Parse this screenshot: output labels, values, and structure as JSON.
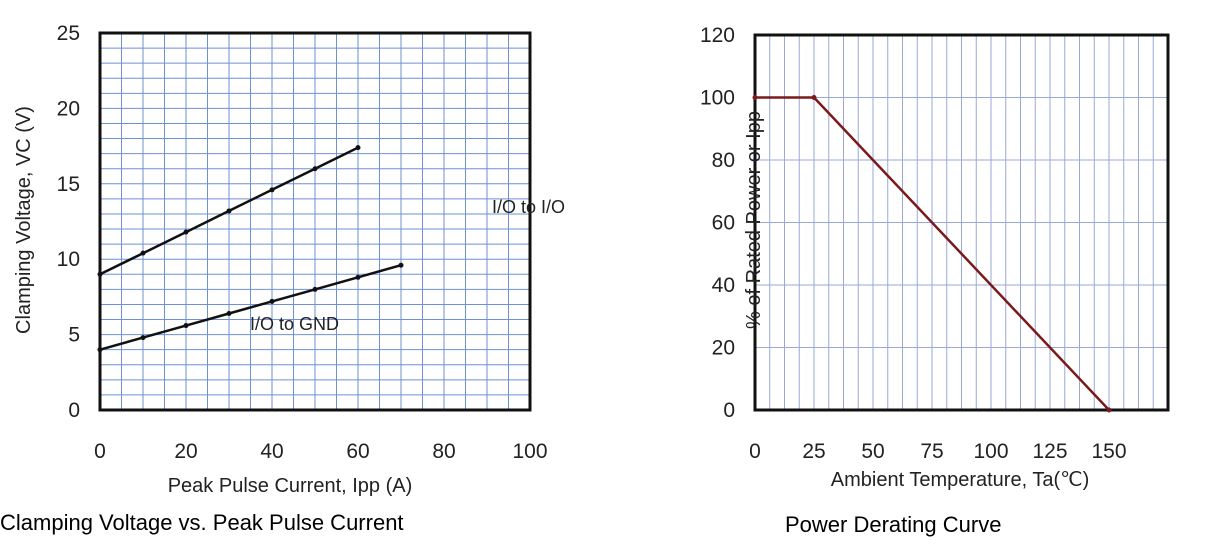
{
  "figure": {
    "caption_left": "Clamping Voltage vs. Peak Pulse Current",
    "caption_right": "Power Derating Curve"
  },
  "chart_data": [
    {
      "type": "line",
      "title": "Clamping Voltage vs. Peak Pulse Current",
      "xlabel": "Peak Pulse Current, Ipp (A)",
      "ylabel": "Clamping Voltage, VC (V)",
      "xlim": [
        0,
        100
      ],
      "ylim": [
        0,
        25
      ],
      "xticks": [
        0,
        20,
        40,
        60,
        80,
        100
      ],
      "yticks": [
        0,
        5,
        10,
        15,
        20,
        25
      ],
      "grid": true,
      "annotations": [
        "I/O to I/O",
        "I/O to GND"
      ],
      "series": [
        {
          "name": "I/O to I/O",
          "x": [
            0,
            10,
            20,
            30,
            40,
            50,
            60
          ],
          "y": [
            9,
            10.4,
            11.8,
            13.2,
            14.6,
            16.0,
            17.4
          ]
        },
        {
          "name": "I/O to GND",
          "x": [
            0,
            10,
            20,
            30,
            40,
            50,
            60,
            70
          ],
          "y": [
            4,
            4.8,
            5.6,
            6.4,
            7.2,
            8.0,
            8.8,
            9.6
          ]
        }
      ]
    },
    {
      "type": "line",
      "title": "Power Derating Curve",
      "xlabel": "Ambient Temperature, Ta(℃)",
      "ylabel": "% of Rated Power or Ipp",
      "xlim": [
        0,
        175
      ],
      "ylim": [
        0,
        120
      ],
      "xticks": [
        0,
        25,
        50,
        75,
        100,
        125,
        150
      ],
      "yticks": [
        0,
        20,
        40,
        60,
        80,
        100,
        120
      ],
      "grid": true,
      "series": [
        {
          "name": "",
          "x": [
            0,
            25,
            150
          ],
          "y": [
            100,
            100,
            0
          ]
        }
      ]
    }
  ]
}
